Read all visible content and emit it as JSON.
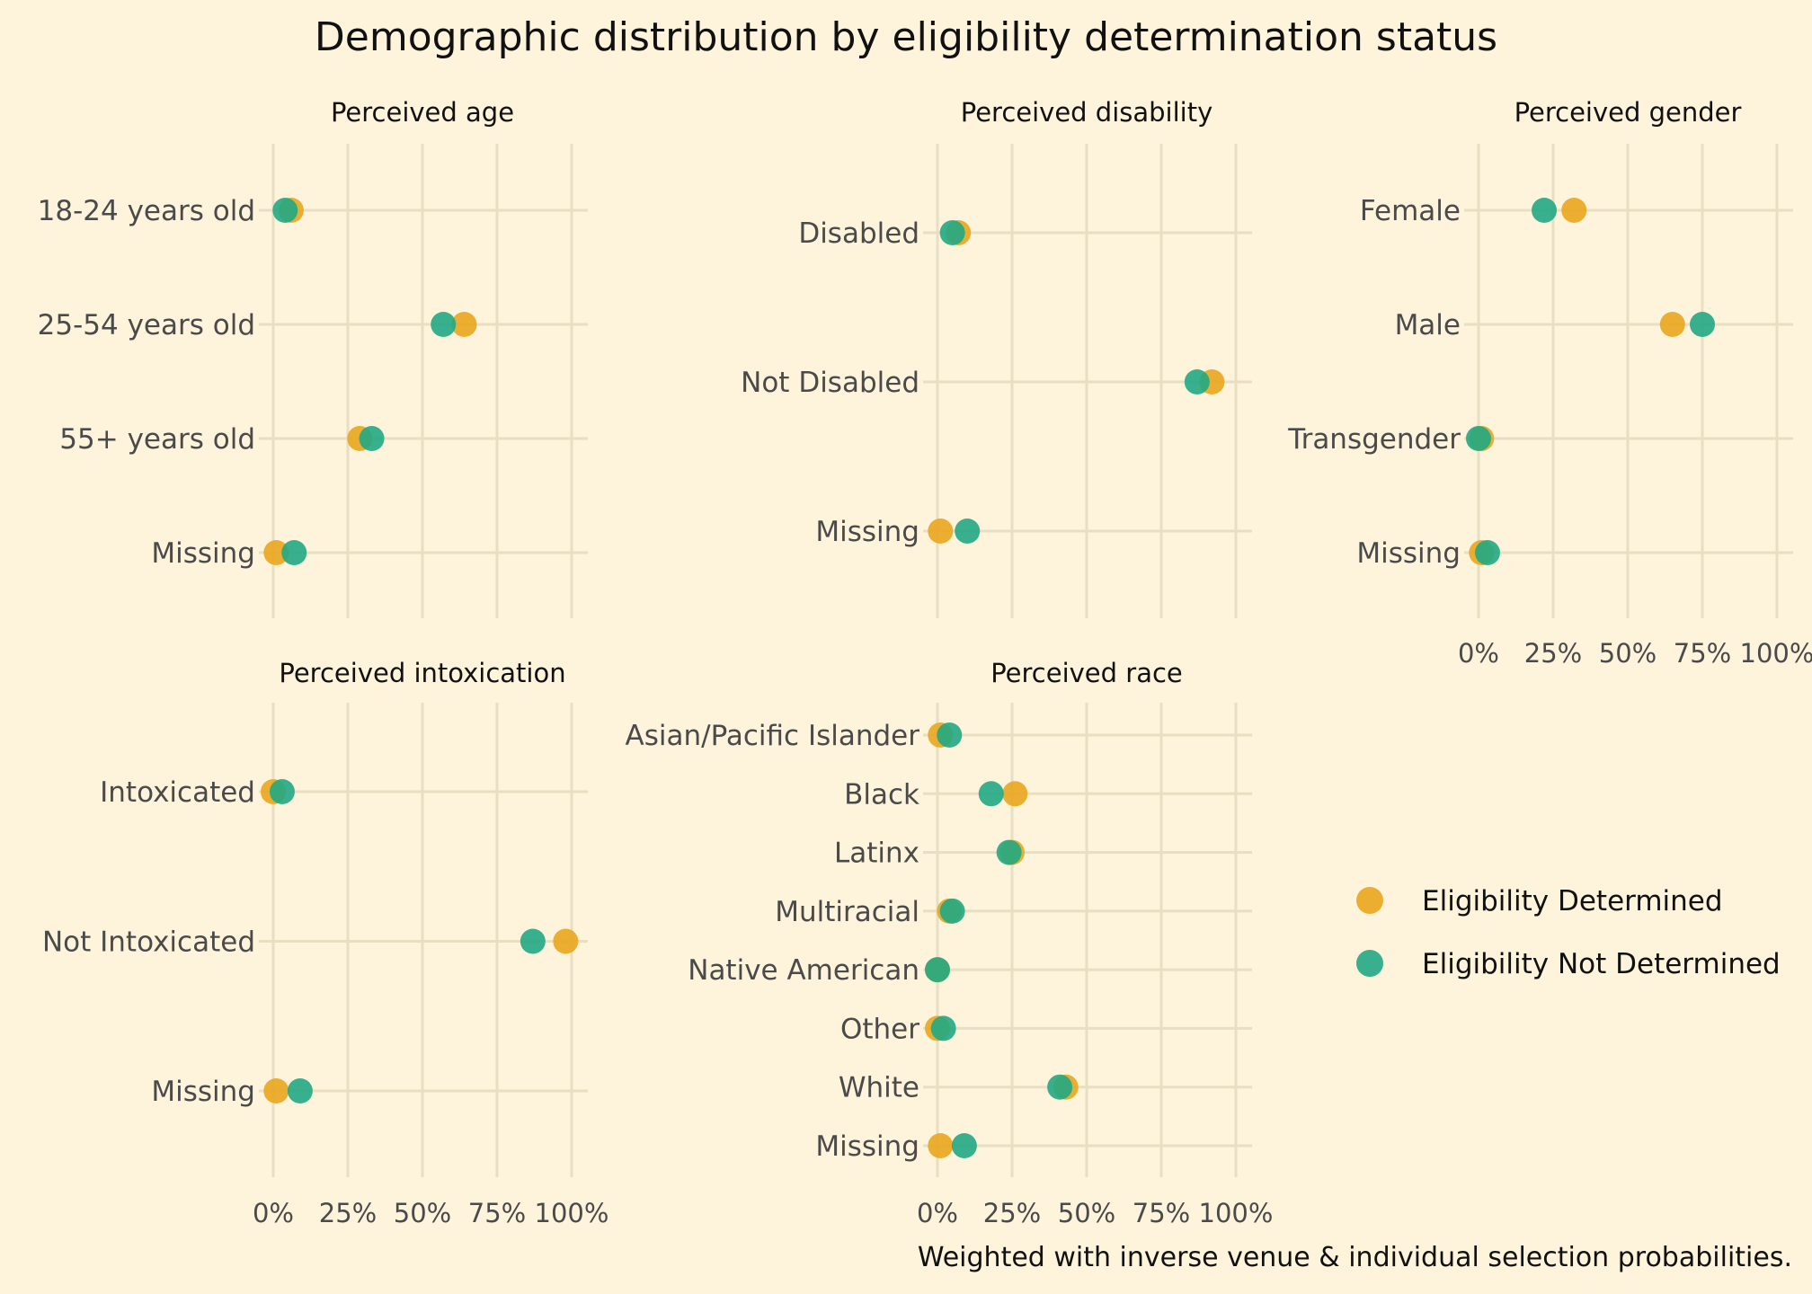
{
  "chart_data": {
    "type": "scatter",
    "title": "Demographic distribution by eligibility determination status",
    "caption": "Weighted with inverse venue & individual selection probabilities.",
    "x_tick_labels": [
      "0%",
      "25%",
      "50%",
      "75%",
      "100%"
    ],
    "xlim": [
      0,
      100
    ],
    "grid": true,
    "legend_position": "right",
    "series": [
      {
        "name": "Eligibility Determined",
        "color": "#e9a61e"
      },
      {
        "name": "Eligibility Not Determined",
        "color": "#22a884"
      }
    ],
    "facets": [
      {
        "name": "Perceived age",
        "categories": [
          "18-24  years old",
          "25-54 years old",
          "55+ years old",
          "Missing"
        ],
        "values": {
          "Eligibility Determined": [
            6,
            64,
            29,
            1
          ],
          "Eligibility Not Determined": [
            4,
            57,
            33,
            7
          ]
        }
      },
      {
        "name": "Perceived disability",
        "categories": [
          "Disabled",
          "Not Disabled",
          "Missing"
        ],
        "values": {
          "Eligibility Determined": [
            7,
            92,
            1
          ],
          "Eligibility Not Determined": [
            5,
            87,
            10
          ]
        }
      },
      {
        "name": "Perceived gender",
        "categories": [
          "Female",
          "Male",
          "Transgender",
          "Missing"
        ],
        "values": {
          "Eligibility Determined": [
            32,
            65,
            1,
            1
          ],
          "Eligibility Not Determined": [
            22,
            75,
            0,
            3
          ]
        }
      },
      {
        "name": "Perceived intoxication",
        "categories": [
          "Intoxicated",
          "Not Intoxicated",
          "Missing"
        ],
        "values": {
          "Eligibility Determined": [
            0,
            98,
            1
          ],
          "Eligibility Not Determined": [
            3,
            87,
            9
          ]
        }
      },
      {
        "name": "Perceived race",
        "categories": [
          "Asian/Pacific Islander",
          "Black",
          "Latinx",
          "Multiracial",
          "Native American",
          "Other",
          "White",
          "Missing"
        ],
        "values": {
          "Eligibility Determined": [
            1,
            26,
            25,
            4,
            0,
            0,
            43,
            1
          ],
          "Eligibility Not Determined": [
            4,
            18,
            24,
            5,
            0,
            2,
            41,
            9
          ]
        }
      }
    ]
  }
}
